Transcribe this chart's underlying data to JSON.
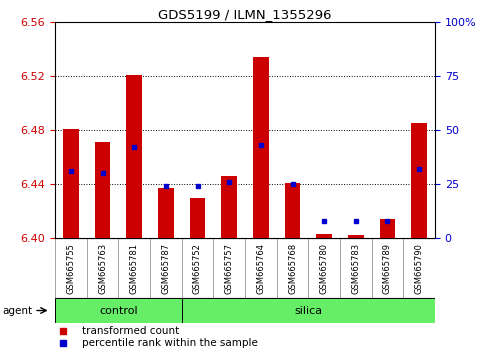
{
  "title": "GDS5199 / ILMN_1355296",
  "samples": [
    "GSM665755",
    "GSM665763",
    "GSM665781",
    "GSM665787",
    "GSM665752",
    "GSM665757",
    "GSM665764",
    "GSM665768",
    "GSM665780",
    "GSM665783",
    "GSM665789",
    "GSM665790"
  ],
  "groups": [
    "control",
    "control",
    "control",
    "control",
    "silica",
    "silica",
    "silica",
    "silica",
    "silica",
    "silica",
    "silica",
    "silica"
  ],
  "transformed_count": [
    6.481,
    6.471,
    6.521,
    6.437,
    6.43,
    6.446,
    6.534,
    6.441,
    6.403,
    6.402,
    6.414,
    6.485
  ],
  "percentile_rank_pct": [
    31,
    30,
    42,
    24,
    24,
    26,
    43,
    25,
    8,
    8,
    8,
    32
  ],
  "ymin": 6.4,
  "ymax": 6.56,
  "yticks": [
    6.4,
    6.44,
    6.48,
    6.52,
    6.56
  ],
  "y2ticks_val": [
    0,
    25,
    50,
    75,
    100
  ],
  "y2ticks_label": [
    "0",
    "25",
    "50",
    "75",
    "100%"
  ],
  "bar_color": "#cc0000",
  "dot_color": "#0000cc",
  "group_band_color": "#66ee66",
  "tick_color_left": "#cc0000",
  "tick_color_right": "#0000cc",
  "bar_width": 0.5,
  "baseline": 6.4,
  "bg_color": "#ffffff",
  "label_bg": "#d8d8d8"
}
